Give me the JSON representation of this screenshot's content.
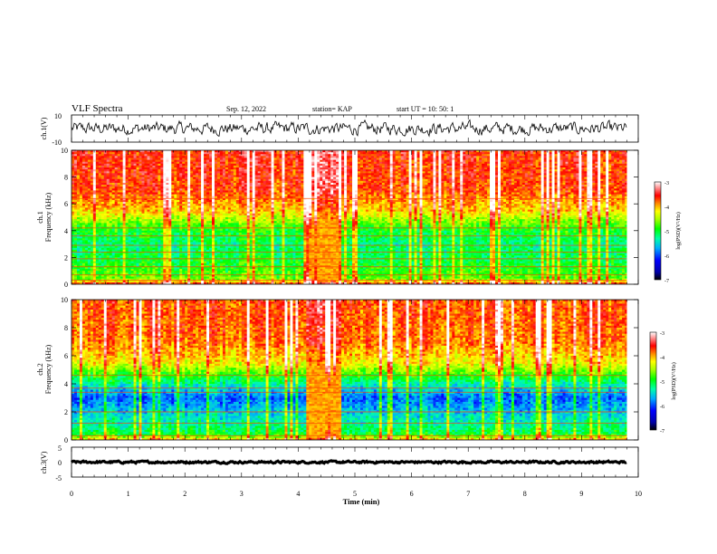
{
  "header": {
    "title": "VLF Spectra",
    "date": "Sep. 12, 2022",
    "station": "station= KAP",
    "start": "start UT =  10: 50: 1"
  },
  "chart_data": [
    {
      "type": "line",
      "panel": "ch1-waveform",
      "ylabel": "ch.1(V)",
      "ylim": [
        -10,
        10
      ],
      "y_ticks": [
        "10",
        "-10"
      ],
      "xlim": [
        0,
        10
      ],
      "x_extent_min": 9.8,
      "baseline": 0,
      "noise_amplitude": 4.5
    },
    {
      "type": "heatmap",
      "panel": "ch1-spectrogram",
      "ylabel_line1": "ch.1",
      "ylabel_line2": "Frequency (kHz)",
      "ylim": [
        0,
        10
      ],
      "y_ticks": [
        "0",
        "2",
        "4",
        "6",
        "8",
        "10"
      ],
      "xlim": [
        0,
        10
      ],
      "x_extent_min": 9.8,
      "disturbance_interval_min": [
        4.1,
        4.75
      ],
      "colorbar": {
        "label": "log(PSD)(V²/Hz)",
        "range": [
          -7,
          -3
        ],
        "ticks": [
          "-3",
          "-4",
          "-5",
          "-6",
          "-7"
        ]
      },
      "frequency_profile": [
        {
          "f_khz": 0,
          "log_psd": -3.5
        },
        {
          "f_khz": 0.4,
          "log_psd": -4.7
        },
        {
          "f_khz": 1.5,
          "log_psd": -5.0
        },
        {
          "f_khz": 3.0,
          "log_psd": -5.2
        },
        {
          "f_khz": 4.2,
          "log_psd": -4.9
        },
        {
          "f_khz": 5.5,
          "log_psd": -4.1
        },
        {
          "f_khz": 7.0,
          "log_psd": -3.7
        },
        {
          "f_khz": 10.0,
          "log_psd": -3.6
        }
      ],
      "horizontal_lines_khz": [
        0.3,
        0.7,
        1.3,
        1.9,
        2.4,
        2.9,
        3.6,
        4.2,
        6.4
      ]
    },
    {
      "type": "heatmap",
      "panel": "ch2-spectrogram",
      "ylabel_line1": "ch.2",
      "ylabel_line2": "Frequency (kHz)",
      "ylim": [
        0,
        10
      ],
      "y_ticks": [
        "0",
        "2",
        "4",
        "6",
        "8",
        "10"
      ],
      "xlim": [
        0,
        10
      ],
      "x_extent_min": 9.8,
      "disturbance_interval_min": [
        4.1,
        4.75
      ],
      "colorbar": {
        "label": "log(PSD)(V²/Hz)",
        "range": [
          -7,
          -3
        ],
        "ticks": [
          "-3",
          "-4",
          "-5",
          "-6",
          "-7"
        ]
      },
      "frequency_profile": [
        {
          "f_khz": 0,
          "log_psd": -4.0
        },
        {
          "f_khz": 0.4,
          "log_psd": -5.0
        },
        {
          "f_khz": 1.5,
          "log_psd": -5.4
        },
        {
          "f_khz": 3.0,
          "log_psd": -5.9
        },
        {
          "f_khz": 4.0,
          "log_psd": -5.3
        },
        {
          "f_khz": 5.5,
          "log_psd": -4.2
        },
        {
          "f_khz": 7.0,
          "log_psd": -3.8
        },
        {
          "f_khz": 10.0,
          "log_psd": -3.7
        }
      ],
      "horizontal_lines_khz": [
        0.3,
        1.2,
        2.0,
        3.4,
        3.7,
        4.6
      ]
    },
    {
      "type": "line",
      "panel": "ch3-waveform",
      "ylabel": "ch.3(V)",
      "ylim": [
        -5,
        5
      ],
      "y_ticks": [
        "5",
        "0",
        "-5"
      ],
      "xlim": [
        0,
        10
      ],
      "x_extent_min": 9.8,
      "baseline": 0,
      "noise_amplitude": 0.35
    }
  ],
  "x_axis": {
    "label": "Time (min)",
    "ticks": [
      "0",
      "1",
      "2",
      "3",
      "4",
      "5",
      "6",
      "7",
      "8",
      "9",
      "10"
    ]
  }
}
